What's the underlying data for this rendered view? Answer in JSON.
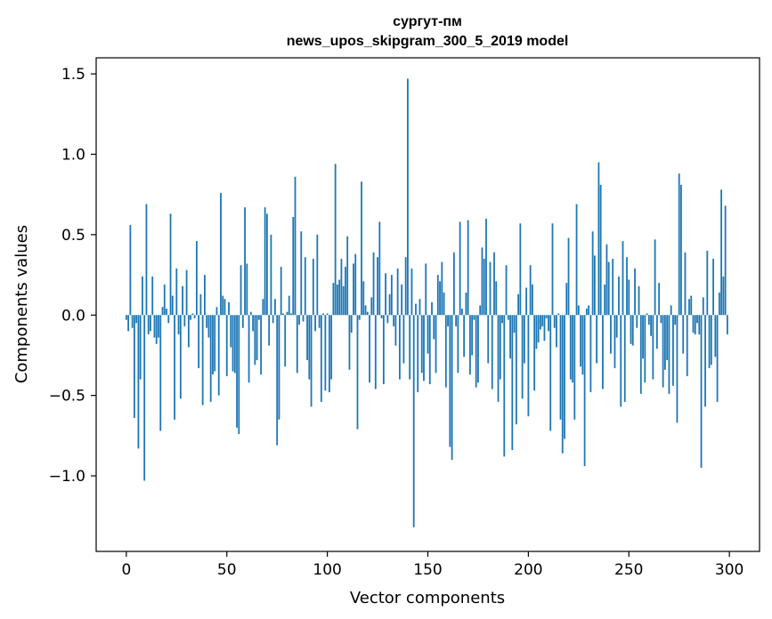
{
  "chart_data": {
    "type": "bar",
    "title": "сургут-пм",
    "subtitle": "news_upos_skipgram_300_5_2019 model",
    "xlabel": "Vector components",
    "ylabel": "Components values",
    "xlim": [
      -15,
      315
    ],
    "ylim": [
      -1.47,
      1.6
    ],
    "xticks": [
      0,
      50,
      100,
      150,
      200,
      250,
      300
    ],
    "yticks": [
      -1.0,
      -0.5,
      0.0,
      0.5,
      1.0,
      1.5
    ],
    "xtick_labels": [
      "0",
      "50",
      "100",
      "150",
      "200",
      "250",
      "300"
    ],
    "ytick_labels": [
      "−1.0",
      "−0.5",
      "0.0",
      "0.5",
      "1.0",
      "1.5"
    ],
    "grid": false,
    "bar_color": "#1f77b4",
    "values": [
      -0.03,
      -0.1,
      0.56,
      -0.08,
      -0.64,
      -0.05,
      -0.83,
      -0.4,
      0.24,
      -1.03,
      0.69,
      -0.12,
      -0.1,
      0.24,
      -0.14,
      -0.18,
      -0.14,
      -0.72,
      0.05,
      0.19,
      0.04,
      -0.05,
      0.63,
      0.12,
      -0.65,
      0.29,
      -0.12,
      -0.52,
      0.18,
      -0.07,
      0.28,
      -0.2,
      -0.03,
      0.01,
      -0.02,
      0.46,
      -0.33,
      0.13,
      -0.56,
      0.25,
      -0.08,
      -0.14,
      -0.54,
      -0.37,
      -0.35,
      0.05,
      -0.5,
      0.76,
      0.12,
      0.1,
      -0.38,
      0.08,
      -0.2,
      -0.35,
      -0.36,
      -0.7,
      -0.74,
      0.31,
      -0.08,
      0.67,
      0.32,
      -0.42,
      0.02,
      -0.1,
      -0.31,
      -0.28,
      -0.03,
      -0.37,
      0.1,
      0.67,
      0.63,
      -0.19,
      0.5,
      -0.05,
      0.1,
      -0.81,
      -0.65,
      0.3,
      0.01,
      -0.32,
      0.02,
      0.12,
      0.01,
      0.61,
      0.86,
      -0.36,
      -0.06,
      0.52,
      -0.04,
      0.36,
      -0.28,
      -0.4,
      -0.57,
      0.35,
      -0.1,
      0.5,
      -0.08,
      -0.54,
      0.01,
      -0.47,
      0.01,
      -0.48,
      -0.4,
      0.2,
      0.94,
      0.19,
      0.22,
      0.35,
      0.18,
      0.3,
      0.49,
      -0.34,
      -0.11,
      0.32,
      0.38,
      -0.71,
      -0.03,
      0.83,
      0.21,
      0.06,
      0.02,
      -0.42,
      0.11,
      0.39,
      -0.46,
      0.36,
      0.58,
      -0.02,
      -0.43,
      0.26,
      -0.05,
      0.13,
      0.25,
      -0.07,
      -0.19,
      0.29,
      -0.4,
      0.19,
      -0.3,
      0.36,
      1.47,
      -0.4,
      0.29,
      -1.32,
      0.07,
      -0.48,
      0.1,
      -0.36,
      -0.41,
      0.32,
      -0.24,
      -0.43,
      0.08,
      -0.15,
      -0.36,
      0.25,
      0.21,
      0.33,
      0.14,
      -0.45,
      -0.07,
      -0.82,
      -0.9,
      0.39,
      -0.07,
      -0.36,
      0.58,
      0.04,
      -0.26,
      0.14,
      0.59,
      -0.37,
      -0.25,
      -0.03,
      -0.45,
      -0.42,
      0.06,
      0.42,
      0.35,
      0.6,
      -0.3,
      0.33,
      -0.46,
      0.39,
      0.21,
      -0.54,
      -0.4,
      -0.05,
      -0.88,
      0.31,
      -0.03,
      -0.27,
      -0.84,
      -0.11,
      -0.68,
      0.13,
      0.57,
      -0.52,
      -0.3,
      0.17,
      -0.63,
      0.31,
      0.19,
      -0.47,
      -0.21,
      -0.17,
      -0.09,
      -0.07,
      -0.16,
      -0.02,
      -0.1,
      -0.72,
      0.57,
      -0.08,
      -0.2,
      0.01,
      -0.65,
      -0.86,
      -0.77,
      0.2,
      0.48,
      -0.4,
      -0.42,
      -0.65,
      0.69,
      0.06,
      -0.32,
      -0.37,
      -0.94,
      0.04,
      0.06,
      -0.48,
      0.52,
      0.37,
      -0.3,
      0.95,
      0.81,
      -0.46,
      0.19,
      0.44,
      0.33,
      -0.24,
      0.35,
      -0.33,
      -0.14,
      0.24,
      -0.57,
      0.46,
      -0.54,
      0.36,
      0.22,
      -0.18,
      -0.19,
      0.29,
      -0.08,
      0.18,
      -0.49,
      -0.27,
      -0.42,
      0.01,
      -0.06,
      -0.13,
      -0.4,
      0.47,
      -0.21,
      0.2,
      -0.05,
      -0.45,
      -0.34,
      -0.28,
      -0.49,
      0.06,
      -0.44,
      -0.06,
      -0.67,
      0.88,
      0.81,
      -0.24,
      0.39,
      -0.38,
      0.1,
      0.12,
      -0.11,
      -0.12,
      -0.05,
      -0.12,
      -0.95,
      0.11,
      -0.57,
      0.4,
      -0.33,
      -0.31,
      0.35,
      -0.26,
      -0.54,
      0.14,
      0.78,
      0.24,
      0.68,
      -0.12
    ]
  }
}
